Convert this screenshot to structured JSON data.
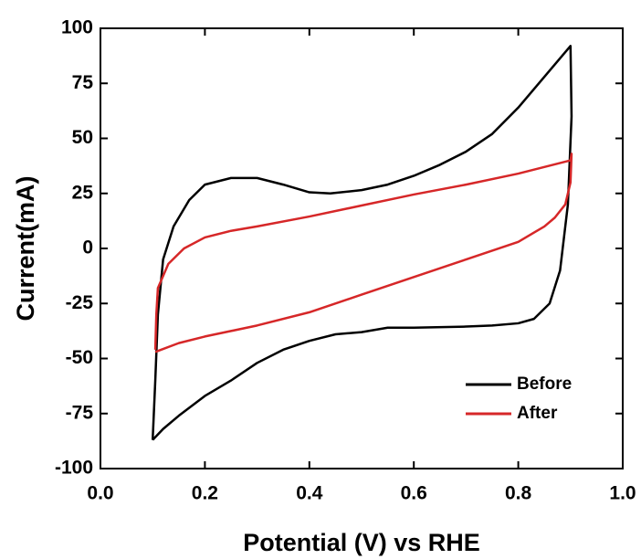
{
  "chart_data": {
    "type": "line",
    "x_label": "Potential (V) vs RHE",
    "y_label": "Current(mA)",
    "xlim": [
      0.0,
      1.0
    ],
    "ylim": [
      -100,
      100
    ],
    "xticks": [
      {
        "value": 0.0,
        "label": "0.0"
      },
      0.2,
      0.4,
      0.6,
      0.8,
      {
        "value": 1.0,
        "label": "1.0"
      }
    ],
    "yticks": [
      -100,
      -75,
      -50,
      -25,
      0,
      25,
      50,
      75,
      100
    ],
    "legend": "lower right",
    "series": [
      {
        "name": "Before",
        "color": "#000000",
        "x": [
          0.1,
          0.105,
          0.11,
          0.12,
          0.14,
          0.17,
          0.2,
          0.25,
          0.3,
          0.35,
          0.4,
          0.44,
          0.5,
          0.55,
          0.6,
          0.65,
          0.7,
          0.75,
          0.8,
          0.85,
          0.9,
          0.902,
          0.895,
          0.88,
          0.86,
          0.83,
          0.8,
          0.75,
          0.7,
          0.6,
          0.55,
          0.5,
          0.45,
          0.4,
          0.35,
          0.3,
          0.25,
          0.2,
          0.15,
          0.12,
          0.1
        ],
        "values": [
          -87,
          -60,
          -30,
          -5,
          10,
          22,
          29,
          32,
          32,
          29,
          25.5,
          25,
          26.5,
          29,
          33,
          38,
          44,
          52,
          64,
          78,
          92,
          60,
          20,
          -10,
          -25,
          -32,
          -34,
          -35,
          -35.5,
          -36,
          -36,
          -38,
          -39,
          -42,
          -46,
          -52,
          -60,
          -67,
          -76,
          -82,
          -87
        ]
      },
      {
        "name": "After",
        "color": "#d62728",
        "x": [
          0.105,
          0.107,
          0.11,
          0.13,
          0.16,
          0.2,
          0.25,
          0.3,
          0.4,
          0.5,
          0.6,
          0.7,
          0.8,
          0.9,
          0.902,
          0.9,
          0.89,
          0.87,
          0.85,
          0.8,
          0.7,
          0.6,
          0.5,
          0.4,
          0.3,
          0.2,
          0.15,
          0.105
        ],
        "values": [
          -46,
          -30,
          -18,
          -7,
          0,
          5,
          8,
          10,
          14.5,
          19.5,
          24.5,
          29,
          34,
          40,
          43,
          30,
          20,
          14,
          10,
          3,
          -5,
          -13,
          -21,
          -29,
          -35,
          -40,
          -43,
          -47
        ]
      }
    ]
  }
}
